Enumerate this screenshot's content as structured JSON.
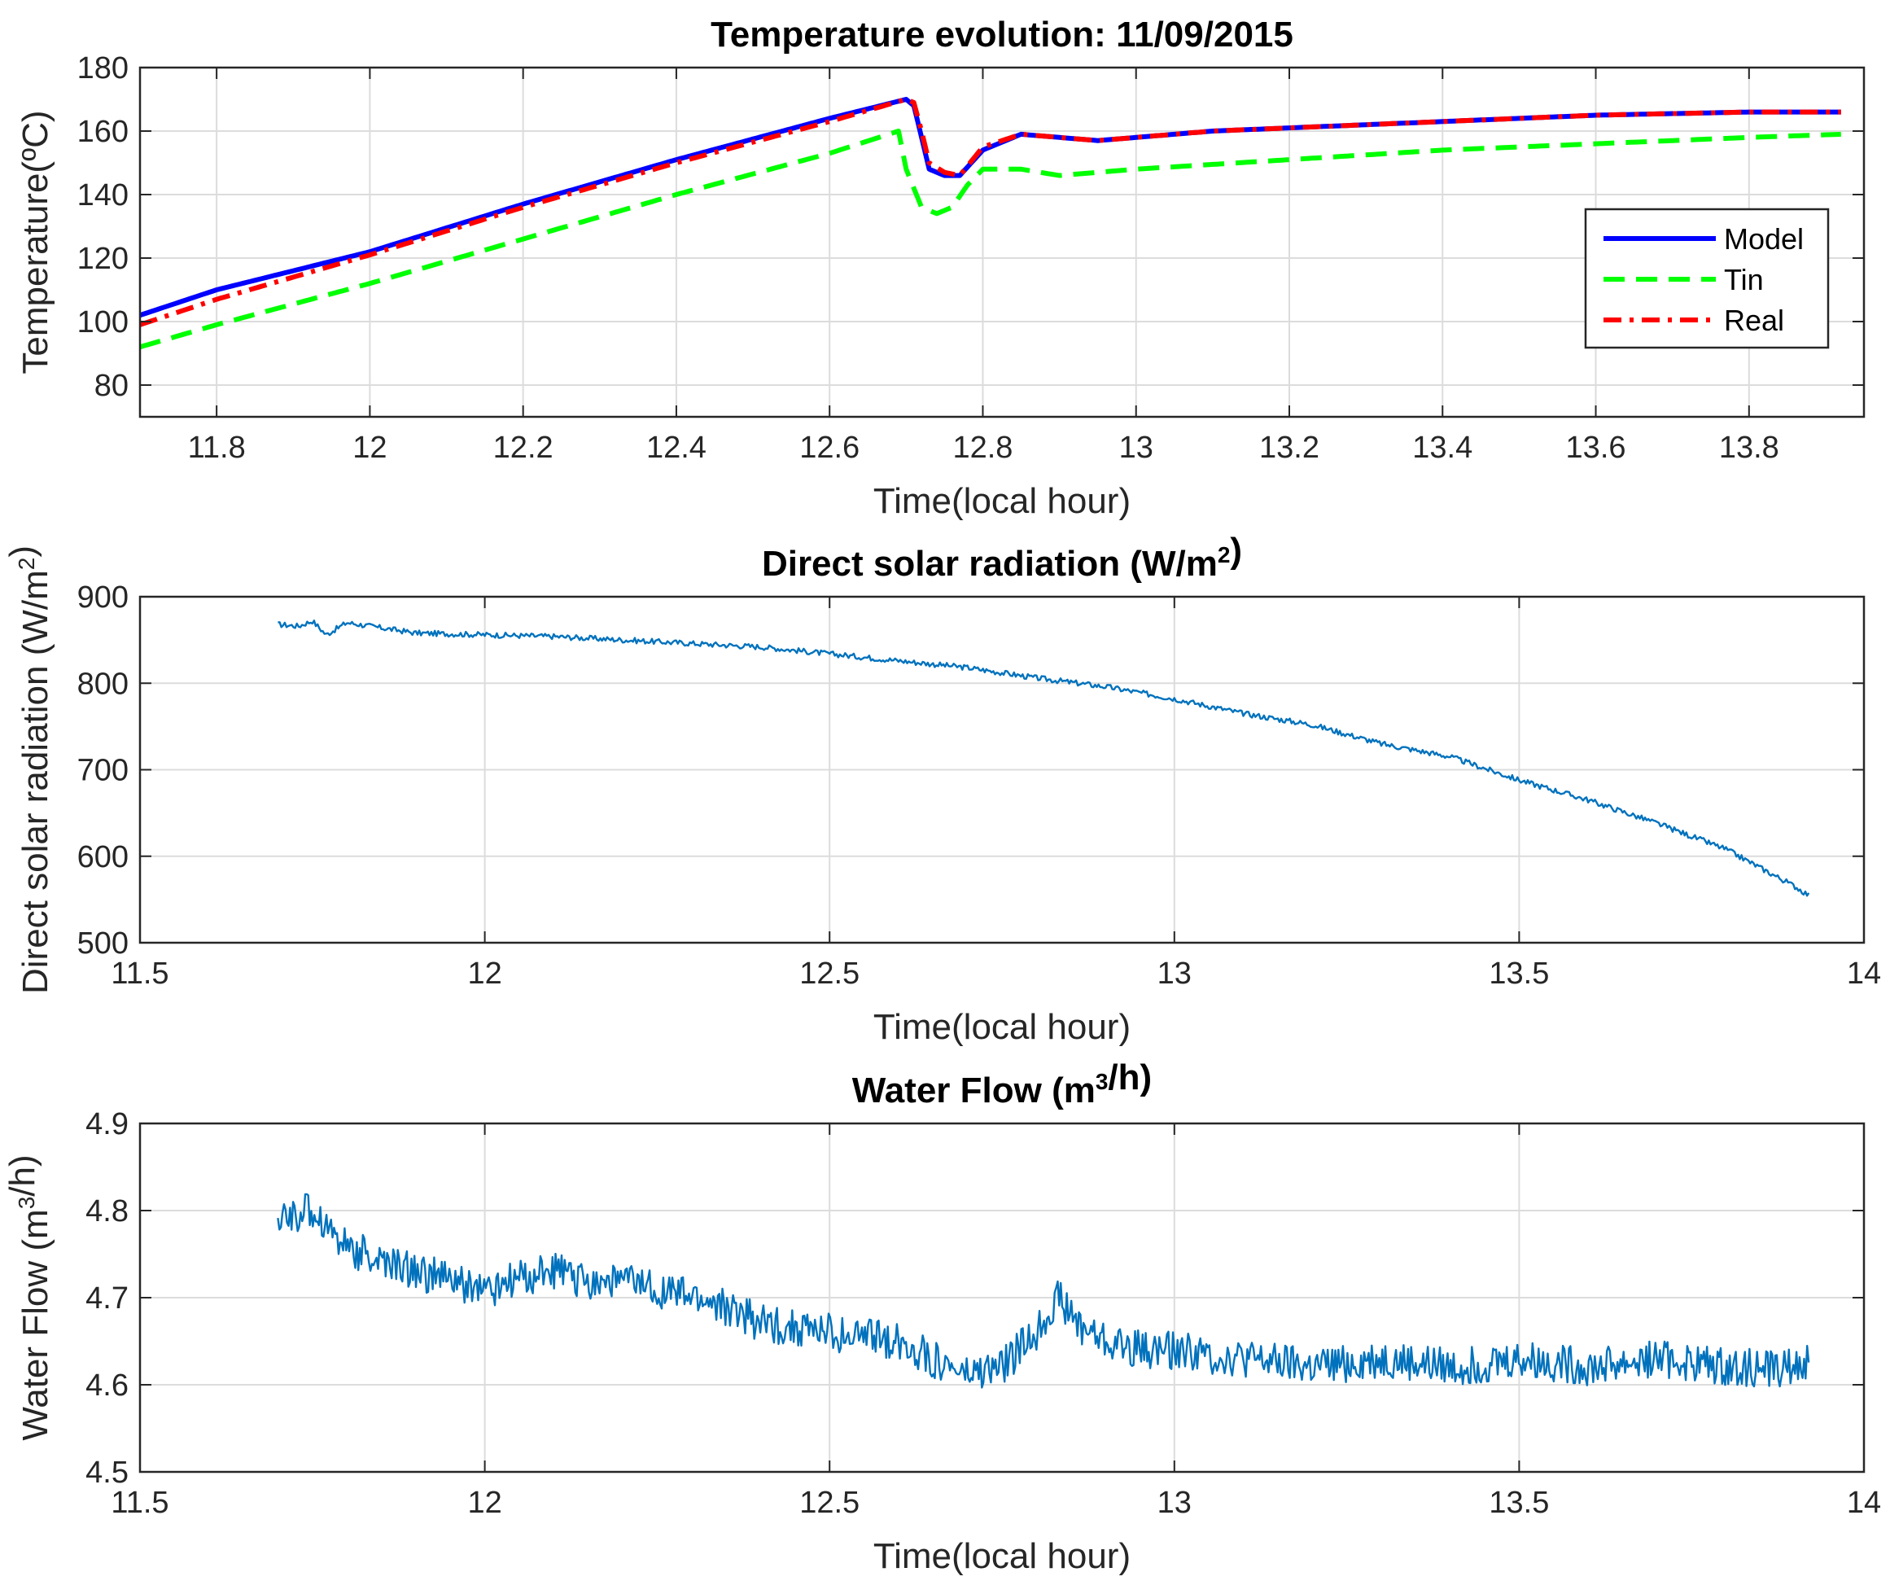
{
  "chart_data": [
    {
      "type": "line",
      "title": "Temperature evolution: 11/09/2015",
      "xlabel": "Time(local hour)",
      "ylabel": "Temperature(ºC)",
      "xlim": [
        11.7,
        13.95
      ],
      "ylim": [
        70,
        180
      ],
      "xticks": [
        11.8,
        12,
        12.2,
        12.4,
        12.6,
        12.8,
        13,
        13.2,
        13.4,
        13.6,
        13.8
      ],
      "xtick_labels": [
        "11.8",
        "12",
        "12.2",
        "12.4",
        "12.6",
        "12.8",
        "13",
        "13.2",
        "13.4",
        "13.6",
        "13.8"
      ],
      "yticks": [
        80,
        100,
        120,
        140,
        160,
        180
      ],
      "ytick_labels": [
        "80",
        "100",
        "120",
        "140",
        "160",
        "180"
      ],
      "grid": true,
      "legend": "right",
      "series": [
        {
          "name": "Model",
          "color": "#0000ff",
          "style": "solid",
          "x": [
            11.7,
            11.8,
            12.0,
            12.2,
            12.4,
            12.6,
            12.7,
            12.71,
            12.72,
            12.73,
            12.75,
            12.77,
            12.8,
            12.85,
            12.9,
            12.95,
            13.0,
            13.1,
            13.2,
            13.4,
            13.6,
            13.8,
            13.92
          ],
          "y": [
            102,
            110,
            122,
            137,
            151,
            164,
            170,
            168,
            158,
            148,
            146,
            146,
            154,
            159,
            158,
            157,
            158,
            160,
            161,
            163,
            165,
            166,
            166
          ]
        },
        {
          "name": "Tin",
          "color": "#00ff00",
          "style": "dashed",
          "x": [
            11.7,
            11.8,
            12.0,
            12.2,
            12.4,
            12.6,
            12.69,
            12.7,
            12.72,
            12.74,
            12.76,
            12.78,
            12.8,
            12.85,
            12.9,
            13.0,
            13.2,
            13.4,
            13.6,
            13.8,
            13.92
          ],
          "y": [
            92,
            99,
            112,
            126,
            140,
            153,
            160,
            148,
            136,
            134,
            136,
            143,
            148,
            148,
            146,
            148,
            151,
            154,
            156,
            158,
            159
          ]
        },
        {
          "name": "Real",
          "color": "#ff0000",
          "style": "dashdot",
          "x": [
            11.7,
            11.8,
            12.0,
            12.2,
            12.4,
            12.6,
            12.7,
            12.71,
            12.72,
            12.73,
            12.75,
            12.77,
            12.8,
            12.85,
            12.9,
            12.95,
            13.0,
            13.1,
            13.2,
            13.4,
            13.6,
            13.8,
            13.92
          ],
          "y": [
            99,
            107,
            121,
            136,
            150,
            163,
            170,
            169,
            160,
            150,
            147,
            146,
            155,
            159,
            158,
            157,
            158,
            160,
            161,
            163,
            165,
            166,
            166
          ]
        }
      ]
    },
    {
      "type": "line",
      "title": "Direct solar radiation (W/m²)",
      "xlabel": "Time(local hour)",
      "ylabel": "Direct solar radiation (W/m²)",
      "xlim": [
        11.5,
        14
      ],
      "ylim": [
        500,
        900
      ],
      "xticks": [
        11.5,
        12,
        12.5,
        13,
        13.5,
        14
      ],
      "xtick_labels": [
        "11.5",
        "12",
        "12.5",
        "13",
        "13.5",
        "14"
      ],
      "yticks": [
        500,
        600,
        700,
        800,
        900
      ],
      "ytick_labels": [
        "500",
        "600",
        "700",
        "800",
        "900"
      ],
      "grid": true,
      "series": [
        {
          "name": "Direct solar radiation",
          "color": "#0072bd",
          "x": [
            11.7,
            11.73,
            11.75,
            11.77,
            11.8,
            11.85,
            11.9,
            12.0,
            12.1,
            12.2,
            12.3,
            12.4,
            12.5,
            12.6,
            12.7,
            12.8,
            12.9,
            13.0,
            13.1,
            13.2,
            13.3,
            13.4,
            13.5,
            13.6,
            13.7,
            13.8,
            13.9,
            13.92
          ],
          "y": [
            868,
            866,
            872,
            856,
            870,
            864,
            858,
            856,
            854,
            850,
            846,
            842,
            834,
            826,
            818,
            806,
            796,
            782,
            765,
            752,
            730,
            715,
            688,
            665,
            638,
            608,
            565,
            555
          ]
        }
      ]
    },
    {
      "type": "line",
      "title": "Water Flow (m³/h)",
      "xlabel": "Time(local hour)",
      "ylabel": "Water Flow (m³/h)",
      "xlim": [
        11.5,
        14
      ],
      "ylim": [
        4.5,
        4.9
      ],
      "xticks": [
        11.5,
        12,
        12.5,
        13,
        13.5,
        14
      ],
      "xtick_labels": [
        "11.5",
        "12",
        "12.5",
        "13",
        "13.5",
        "14"
      ],
      "yticks": [
        4.5,
        4.6,
        4.7,
        4.8,
        4.9
      ],
      "ytick_labels": [
        "4.5",
        "4.6",
        "4.7",
        "4.8",
        "4.9"
      ],
      "grid": true,
      "series": [
        {
          "name": "Water Flow",
          "color": "#0072bd",
          "x": [
            11.7,
            11.75,
            11.8,
            11.85,
            11.9,
            12.0,
            12.05,
            12.1,
            12.15,
            12.2,
            12.3,
            12.35,
            12.4,
            12.5,
            12.6,
            12.65,
            12.7,
            12.75,
            12.8,
            12.83,
            12.86,
            12.9,
            12.95,
            13.0,
            13.1,
            13.2,
            13.3,
            13.4,
            13.5,
            13.6,
            13.7,
            13.8,
            13.9,
            13.92
          ],
          "y": [
            4.79,
            4.8,
            4.76,
            4.74,
            4.73,
            4.71,
            4.72,
            4.73,
            4.72,
            4.72,
            4.7,
            4.69,
            4.67,
            4.66,
            4.65,
            4.63,
            4.61,
            4.62,
            4.66,
            4.7,
            4.67,
            4.65,
            4.64,
            4.64,
            4.63,
            4.62,
            4.63,
            4.62,
            4.63,
            4.62,
            4.63,
            4.62,
            4.62,
            4.63
          ]
        }
      ]
    }
  ]
}
